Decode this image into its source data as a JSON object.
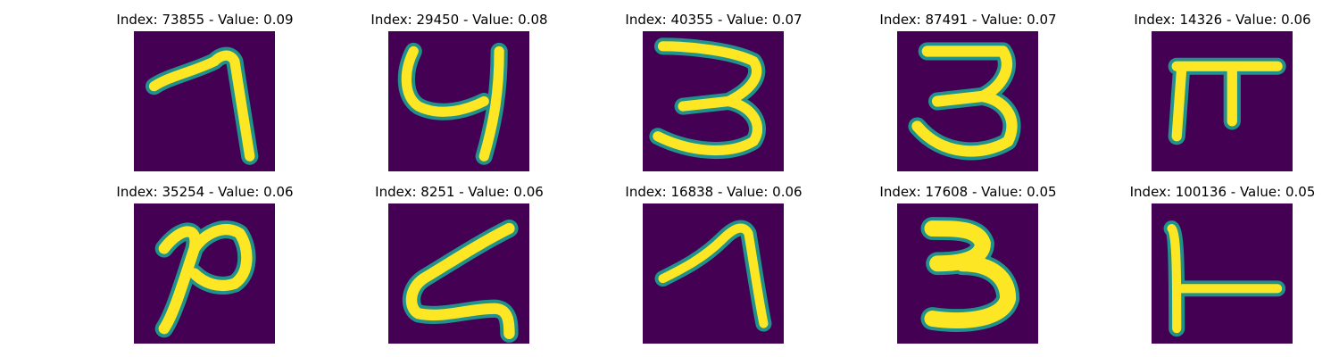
{
  "background_color": "#440154",
  "stroke_colors": [
    "#21918c",
    "#5ec962",
    "#fde725"
  ],
  "panels": [
    {
      "title": "Index: 73855 - Value: 0.09",
      "glyph": "seven-like stroke"
    },
    {
      "title": "Index: 29450 - Value: 0.08",
      "glyph": "four/y-like stroke"
    },
    {
      "title": "Index: 40355 - Value: 0.07",
      "glyph": "three-like stroke"
    },
    {
      "title": "Index: 87491 - Value: 0.07",
      "glyph": "three-like stroke"
    },
    {
      "title": "Index: 14326 - Value: 0.06",
      "glyph": "pi-like stroke"
    },
    {
      "title": "Index: 35254 - Value: 0.06",
      "glyph": "two-like stroke"
    },
    {
      "title": "Index: 8251 - Value: 0.06",
      "glyph": "z-like stroke"
    },
    {
      "title": "Index: 16838 - Value: 0.06",
      "glyph": "seven-like stroke"
    },
    {
      "title": "Index: 17608 - Value: 0.05",
      "glyph": "three-like stroke"
    },
    {
      "title": "Index: 100136 - Value: 0.05",
      "glyph": "L-like stroke"
    }
  ]
}
